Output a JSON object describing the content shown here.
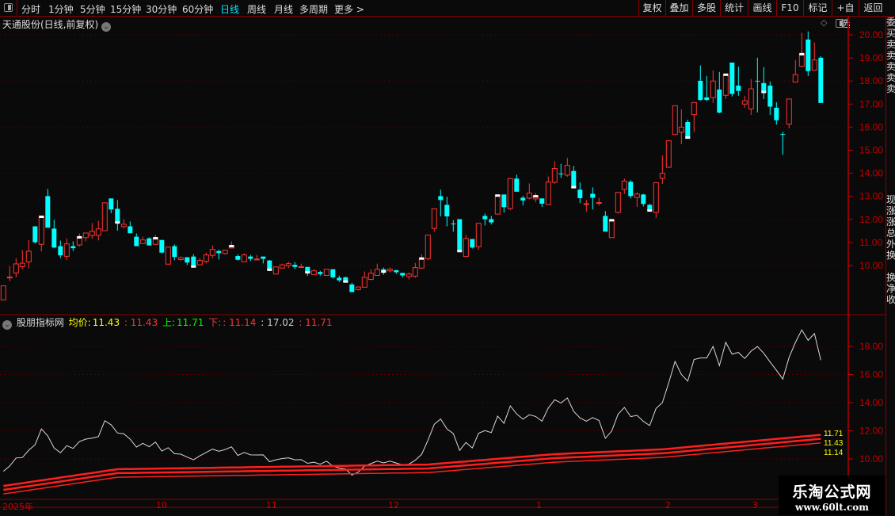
{
  "toolbar": {
    "periods": [
      "分时",
      "1分钟",
      "5分钟",
      "15分钟",
      "30分钟",
      "60分钟",
      "日线",
      "周线",
      "月线",
      "多周期",
      "更多 >"
    ],
    "active_period": "日线",
    "right_buttons": [
      "复权",
      "叠加",
      "多股",
      "统计",
      "画线",
      "F10",
      "标记",
      "+自选",
      "返回"
    ]
  },
  "main": {
    "title": "天通股份(日线,前复权)",
    "y_ticks": [
      "20.00",
      "19.00",
      "18.00",
      "17.00",
      "16.00",
      "15.00",
      "14.00",
      "13.00",
      "12.00",
      "11.00",
      "10.00"
    ]
  },
  "indicator": {
    "name": "股朋指标网",
    "label_avg": "均价:",
    "val_avg": "11.43",
    "val_mid": ": 11.43",
    "label_up": "上:",
    "val_up": "11.71",
    "label_down": "下:",
    "val_down": ": 11.14",
    "val_white": ": 17.02",
    "val_red": ": 11.71",
    "y_ticks": [
      "18.00",
      "16.00",
      "14.00",
      "12.00",
      "10.00"
    ],
    "end_labels": [
      "11.71",
      "11.43",
      "11.14"
    ]
  },
  "x_axis": {
    "labels": [
      "2025年",
      "10",
      "11",
      "12",
      "1",
      "2",
      "3"
    ]
  },
  "right_strip": [
    "委",
    "买",
    "卖",
    "卖",
    "卖",
    "卖",
    "卖",
    "",
    "",
    "",
    "",
    "",
    "",
    "",
    "",
    "",
    "现",
    "涨",
    "涨",
    "总",
    "外",
    "换",
    "",
    "换",
    "净",
    "收"
  ],
  "watermark": {
    "title": "乐淘公式网",
    "url": "www.60lt.com"
  },
  "colors": {
    "up": "#ff3232",
    "down": "#00ffff",
    "axis": "#c00000",
    "border": "#8b0000",
    "avg": "#ffff00",
    "upper_label": "#00ff00"
  },
  "chart_data": {
    "type": "candlestick",
    "ylim": [
      8.5,
      20.2
    ],
    "ohlc": [
      [
        8.51,
        9.12,
        8.51,
        9.12
      ],
      [
        9.5,
        9.98,
        9.32,
        9.5
      ],
      [
        9.68,
        10.32,
        9.49,
        10.07
      ],
      [
        9.95,
        10.67,
        9.84,
        10.1
      ],
      [
        10.16,
        11.11,
        9.88,
        10.62
      ],
      [
        11.7,
        11.7,
        10.95,
        11.01
      ],
      [
        10.92,
        12.13,
        10.61,
        12.13
      ],
      [
        13.01,
        13.32,
        11.64,
        11.64
      ],
      [
        11.6,
        11.98,
        10.75,
        10.78
      ],
      [
        10.84,
        11.08,
        10.32,
        10.44
      ],
      [
        10.4,
        11.18,
        10.23,
        10.94
      ],
      [
        10.84,
        11.05,
        10.63,
        10.75
      ],
      [
        10.89,
        11.39,
        10.82,
        11.24
      ],
      [
        11.21,
        11.41,
        11.05,
        11.41
      ],
      [
        11.3,
        11.84,
        11.16,
        11.48
      ],
      [
        11.31,
        11.94,
        11.09,
        11.59
      ],
      [
        11.51,
        12.72,
        11.51,
        12.72
      ],
      [
        12.91,
        12.91,
        12.27,
        12.43
      ],
      [
        12.46,
        12.84,
        11.51,
        11.85
      ],
      [
        11.69,
        12.01,
        11.61,
        11.79
      ],
      [
        11.7,
        11.91,
        11.4,
        11.4
      ],
      [
        11.25,
        11.39,
        10.84,
        10.84
      ],
      [
        10.95,
        11.25,
        10.95,
        11.11
      ],
      [
        11.18,
        11.22,
        10.87,
        10.87
      ],
      [
        10.92,
        11.32,
        10.92,
        11.2
      ],
      [
        11.11,
        11.11,
        10.53,
        10.56
      ],
      [
        10.06,
        10.8,
        10.06,
        10.8
      ],
      [
        10.84,
        10.91,
        10.23,
        10.37
      ],
      [
        10.26,
        10.39,
        10.2,
        10.34
      ],
      [
        10.36,
        10.36,
        10.02,
        10.13
      ],
      [
        10.39,
        10.49,
        9.94,
        9.94
      ],
      [
        10.03,
        10.32,
        10.03,
        10.22
      ],
      [
        10.18,
        10.56,
        10.09,
        10.46
      ],
      [
        10.44,
        10.87,
        10.32,
        10.7
      ],
      [
        10.63,
        10.68,
        10.26,
        10.54
      ],
      [
        10.52,
        10.67,
        10.47,
        10.67
      ],
      [
        10.76,
        11.05,
        10.76,
        10.86
      ],
      [
        10.41,
        10.48,
        10.22,
        10.25
      ],
      [
        10.16,
        10.53,
        10.16,
        10.46
      ],
      [
        10.39,
        10.46,
        10.2,
        10.29
      ],
      [
        10.25,
        10.46,
        10.25,
        10.28
      ],
      [
        10.39,
        10.39,
        10.09,
        10.29
      ],
      [
        10.22,
        10.24,
        9.76,
        9.8
      ],
      [
        9.63,
        9.94,
        9.63,
        9.94
      ],
      [
        9.89,
        10.08,
        9.89,
        10.03
      ],
      [
        9.99,
        10.17,
        9.89,
        10.08
      ],
      [
        10.03,
        10.15,
        9.85,
        9.94
      ],
      [
        9.94,
        10.08,
        9.94,
        9.95
      ],
      [
        9.94,
        9.94,
        9.55,
        9.69
      ],
      [
        9.61,
        9.84,
        9.61,
        9.77
      ],
      [
        9.72,
        9.77,
        9.56,
        9.63
      ],
      [
        9.57,
        9.84,
        9.57,
        9.84
      ],
      [
        9.84,
        9.84,
        9.43,
        9.49
      ],
      [
        9.47,
        9.56,
        9.29,
        9.36
      ],
      [
        9.49,
        9.52,
        9.29,
        9.29
      ],
      [
        9.18,
        9.25,
        8.85,
        8.85
      ],
      [
        8.95,
        9.07,
        8.92,
        9.07
      ],
      [
        9.06,
        9.74,
        9.06,
        9.49
      ],
      [
        9.4,
        9.84,
        9.36,
        9.67
      ],
      [
        9.57,
        10.08,
        9.57,
        9.84
      ],
      [
        9.84,
        9.91,
        9.6,
        9.72
      ],
      [
        9.77,
        9.91,
        9.7,
        9.84
      ],
      [
        9.8,
        9.8,
        9.64,
        9.71
      ],
      [
        9.68,
        9.68,
        9.49,
        9.57
      ],
      [
        9.52,
        9.7,
        9.4,
        9.63
      ],
      [
        9.54,
        10.11,
        9.47,
        9.91
      ],
      [
        9.89,
        10.49,
        9.89,
        10.32
      ],
      [
        10.3,
        11.32,
        10.23,
        11.32
      ],
      [
        11.61,
        12.46,
        11.47,
        12.46
      ],
      [
        13.01,
        13.29,
        12.13,
        12.84
      ],
      [
        12.63,
        12.98,
        11.7,
        12.13
      ],
      [
        11.82,
        11.97,
        11.47,
        11.8
      ],
      [
        12.01,
        12.01,
        10.61,
        10.61
      ],
      [
        10.39,
        11.32,
        10.39,
        11.17
      ],
      [
        11.15,
        11.15,
        10.74,
        10.78
      ],
      [
        10.82,
        11.83,
        10.68,
        11.83
      ],
      [
        12.15,
        12.25,
        11.74,
        12.01
      ],
      [
        12.01,
        12.15,
        11.78,
        11.87
      ],
      [
        12.23,
        13.05,
        12.23,
        13.05
      ],
      [
        13.08,
        13.08,
        12.3,
        12.53
      ],
      [
        12.47,
        13.77,
        12.4,
        13.77
      ],
      [
        13.77,
        13.94,
        13.2,
        13.2
      ],
      [
        12.94,
        13.02,
        12.61,
        12.82
      ],
      [
        12.92,
        13.56,
        12.87,
        13.14
      ],
      [
        12.89,
        13.15,
        12.74,
        13.02
      ],
      [
        12.91,
        12.91,
        12.54,
        12.68
      ],
      [
        12.64,
        13.86,
        12.64,
        13.62
      ],
      [
        13.61,
        14.52,
        13.54,
        14.21
      ],
      [
        13.99,
        14.41,
        13.8,
        13.98
      ],
      [
        13.92,
        14.67,
        13.85,
        14.34
      ],
      [
        14.1,
        14.32,
        13.38,
        13.38
      ],
      [
        13.29,
        13.6,
        12.71,
        12.92
      ],
      [
        12.66,
        12.84,
        12.34,
        12.68
      ],
      [
        13.11,
        13.39,
        12.43,
        12.94
      ],
      [
        12.72,
        12.94,
        12.6,
        12.73
      ],
      [
        12.15,
        12.36,
        11.47,
        11.47
      ],
      [
        11.21,
        12.0,
        11.21,
        11.98
      ],
      [
        12.3,
        13.17,
        12.26,
        13.17
      ],
      [
        13.3,
        13.77,
        13.11,
        13.66
      ],
      [
        13.63,
        13.7,
        12.91,
        13.01
      ],
      [
        12.95,
        13.17,
        12.54,
        13.1
      ],
      [
        13.08,
        13.11,
        12.56,
        12.67
      ],
      [
        12.63,
        12.68,
        12.37,
        12.37
      ],
      [
        12.3,
        13.59,
        12.06,
        13.59
      ],
      [
        13.78,
        14.77,
        13.54,
        14.0
      ],
      [
        14.26,
        15.41,
        14.26,
        15.41
      ],
      [
        15.68,
        16.93,
        15.68,
        16.93
      ],
      [
        15.78,
        16.77,
        15.26,
        16.0
      ],
      [
        16.22,
        16.32,
        15.53,
        15.53
      ],
      [
        16.54,
        17.07,
        15.78,
        17.07
      ],
      [
        18.01,
        18.67,
        17.15,
        17.18
      ],
      [
        17.29,
        18.22,
        17.13,
        17.18
      ],
      [
        17.28,
        18.46,
        17.05,
        18.0
      ],
      [
        17.63,
        18.39,
        16.6,
        16.63
      ],
      [
        17.38,
        18.29,
        17.22,
        18.29
      ],
      [
        18.8,
        18.8,
        17.33,
        17.44
      ],
      [
        17.8,
        18.63,
        17.36,
        17.57
      ],
      [
        17.0,
        17.36,
        16.84,
        17.14
      ],
      [
        16.79,
        18.08,
        16.53,
        17.66
      ],
      [
        18.01,
        19.01,
        16.64,
        17.99
      ],
      [
        17.91,
        18.6,
        17.22,
        17.51
      ],
      [
        17.8,
        17.98,
        16.53,
        16.89
      ],
      [
        16.84,
        17.08,
        16.11,
        16.3
      ],
      [
        15.7,
        15.8,
        14.8,
        15.68
      ],
      [
        16.13,
        17.22,
        15.95,
        17.22
      ],
      [
        17.95,
        18.91,
        17.95,
        18.28
      ],
      [
        18.64,
        20.09,
        18.6,
        19.18
      ],
      [
        19.8,
        20.15,
        18.22,
        18.43
      ],
      [
        18.47,
        19.67,
        18.47,
        18.91
      ],
      [
        19.01,
        19.08,
        17.05,
        17.05
      ]
    ],
    "white_top_marks": [
      6,
      12,
      24,
      36,
      66,
      78,
      84,
      96,
      114,
      126
    ],
    "white_bottom_marks": [
      18,
      30,
      42,
      48,
      54,
      60,
      72,
      90,
      102,
      108,
      120
    ],
    "indicator": {
      "ylim": [
        7.0,
        19.6
      ],
      "white_line_last": 17.02,
      "band_mid_keypoints": [
        [
          0,
          7.8
        ],
        [
          18,
          8.99
        ],
        [
          67,
          9.32
        ],
        [
          87,
          10.06
        ],
        [
          104,
          10.4
        ],
        [
          129,
          11.43
        ]
      ],
      "band_upper_last": 11.71,
      "band_lower_last": 11.14
    }
  }
}
